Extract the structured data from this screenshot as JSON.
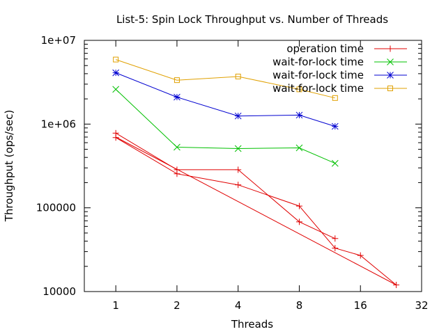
{
  "chart_data": {
    "type": "line",
    "title": "List-5: Spin Lock Throughput vs. Number of Threads",
    "xlabel": "Threads",
    "ylabel": "Throughput (ops/sec)",
    "x_scale": "log2",
    "y_scale": "log10",
    "xlim": [
      0.7,
      32
    ],
    "ylim": [
      10000,
      10000000
    ],
    "x_ticks": [
      1,
      2,
      4,
      8,
      16,
      32
    ],
    "x_tick_labels": [
      "1",
      "2",
      "4",
      "8",
      "16",
      "32"
    ],
    "y_ticks": [
      10000,
      100000,
      1000000,
      10000000
    ],
    "y_tick_labels": [
      "10000",
      "100000",
      "1e+06",
      "1e+07"
    ],
    "grid": false,
    "legend_position": "top-right",
    "series": [
      {
        "name": "operation time",
        "color": "#e00000",
        "marker": "plus",
        "legend": true,
        "points": [
          [
            1,
            780000
          ],
          [
            2,
            285000
          ],
          [
            4,
            285000
          ],
          [
            8,
            68000
          ],
          [
            12,
            43000
          ]
        ]
      },
      {
        "name": "",
        "color": "#e00000",
        "marker": "plus",
        "legend": false,
        "points": [
          [
            1,
            690000
          ],
          [
            2,
            255000
          ],
          [
            4,
            188000
          ],
          [
            8,
            105000
          ],
          [
            12,
            33000
          ],
          [
            16,
            27000
          ],
          [
            24,
            12000
          ]
        ]
      },
      {
        "name": "",
        "color": "#e00000",
        "marker": "none",
        "legend": false,
        "points": [
          [
            1,
            700000
          ],
          [
            24,
            12000
          ]
        ]
      },
      {
        "name": "wait-for-lock time",
        "color": "#00c000",
        "marker": "cross",
        "legend": true,
        "points": [
          [
            1,
            2600000
          ],
          [
            2,
            530000
          ],
          [
            4,
            510000
          ],
          [
            8,
            520000
          ],
          [
            12,
            340000
          ]
        ]
      },
      {
        "name": "wait-for-lock time",
        "color": "#0000d0",
        "marker": "star",
        "legend": true,
        "points": [
          [
            1,
            4100000
          ],
          [
            2,
            2100000
          ],
          [
            4,
            1250000
          ],
          [
            8,
            1280000
          ],
          [
            12,
            940000
          ]
        ]
      },
      {
        "name": "wait-for-lock time",
        "color": "#e0a000",
        "marker": "box",
        "legend": true,
        "points": [
          [
            1,
            5900000
          ],
          [
            2,
            3350000
          ],
          [
            4,
            3700000
          ],
          [
            8,
            2600000
          ],
          [
            12,
            2050000
          ]
        ]
      }
    ]
  }
}
